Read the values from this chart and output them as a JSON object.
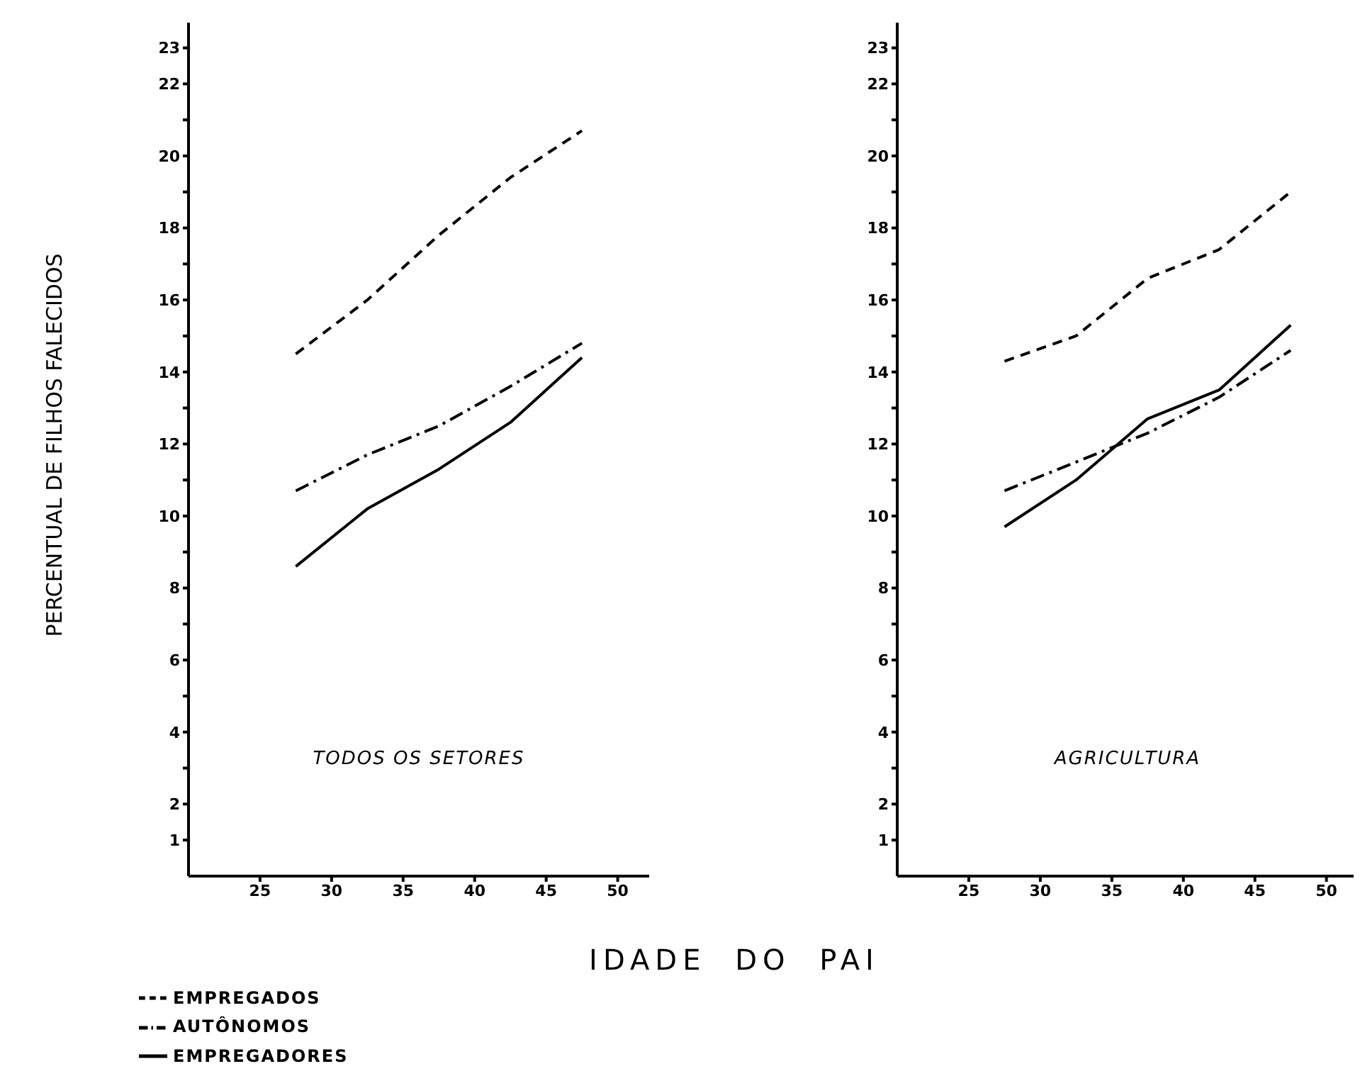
{
  "chart_data": [
    {
      "type": "line",
      "ylabel": "PERCENTUAL DE FILHOS FALECIDOS",
      "xlabel": "IDADE DO PAI",
      "annotations": [
        "TODOS OS SETORES"
      ],
      "x": [
        27.5,
        32.5,
        37.5,
        42.5,
        47.5
      ],
      "xlim": [
        20,
        52.2
      ],
      "xticks": [
        25,
        30,
        35,
        40,
        45,
        50
      ],
      "ylim": [
        0,
        23.7
      ],
      "yticks": [
        1,
        2,
        {
          "value": 3,
          "label": null
        },
        4,
        {
          "value": 5,
          "label": null
        },
        6,
        {
          "value": 7,
          "label": null
        },
        8,
        {
          "value": 9,
          "label": null
        },
        10,
        {
          "value": 11,
          "label": null
        },
        12,
        {
          "value": 13,
          "label": null
        },
        14,
        {
          "value": 15,
          "label": null
        },
        16,
        {
          "value": 17,
          "label": null
        },
        18,
        {
          "value": 19,
          "label": null
        },
        20,
        {
          "value": 21,
          "label": null
        },
        22,
        23
      ],
      "legend": "bottom",
      "series": [
        {
          "name": "EMPREGADOS",
          "color": "#000000",
          "line_style": "dashed",
          "values": [
            14.5,
            16.0,
            17.8,
            19.4,
            20.7
          ]
        },
        {
          "name": "AUTÔNOMOS",
          "color": "#000000",
          "line_style": "dashdot",
          "values": [
            10.7,
            11.7,
            12.5,
            13.6,
            14.8
          ]
        },
        {
          "name": "EMPREGADORES",
          "color": "#000000",
          "line_style": "solid",
          "values": [
            8.6,
            10.2,
            11.3,
            12.6,
            14.4
          ]
        }
      ]
    },
    {
      "type": "line",
      "annotations": [
        "AGRICULTURA"
      ],
      "x": [
        27.5,
        32.5,
        37.5,
        42.5,
        47.5
      ],
      "xlim": [
        20,
        52.2
      ],
      "xticks": [
        25,
        30,
        35,
        40,
        45,
        50
      ],
      "ylim": [
        0,
        23.7
      ],
      "yticks": [
        1,
        2,
        {
          "value": 3,
          "label": null
        },
        4,
        {
          "value": 5,
          "label": null
        },
        6,
        {
          "value": 7,
          "label": null
        },
        8,
        {
          "value": 9,
          "label": null
        },
        10,
        {
          "value": 11,
          "label": null
        },
        12,
        {
          "value": 13,
          "label": null
        },
        14,
        {
          "value": 15,
          "label": null
        },
        16,
        {
          "value": 17,
          "label": null
        },
        18,
        {
          "value": 19,
          "label": null
        },
        20,
        {
          "value": 21,
          "label": null
        },
        22,
        23
      ],
      "series": [
        {
          "color": "#000000",
          "line_style": "dashed",
          "values": [
            14.3,
            15.0,
            16.6,
            17.4,
            19.0
          ]
        },
        {
          "color": "#000000",
          "line_style": "dashdot",
          "values": [
            10.7,
            11.5,
            12.3,
            13.3,
            14.6
          ]
        },
        {
          "color": "#000000",
          "line_style": "solid",
          "values": [
            9.7,
            11.0,
            12.7,
            13.5,
            15.3
          ]
        }
      ]
    }
  ]
}
